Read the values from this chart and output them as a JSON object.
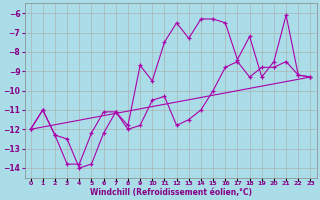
{
  "xlabel": "Windchill (Refroidissement éolien,°C)",
  "ylabel": "",
  "background_color": "#aadde8",
  "grid_color": "#aaaaaa",
  "line_color": "#aa00aa",
  "xlim": [
    -0.5,
    23.5
  ],
  "ylim": [
    -14.5,
    -5.5
  ],
  "yticks": [
    -14,
    -13,
    -12,
    -11,
    -10,
    -9,
    -8,
    -7,
    -6
  ],
  "xtick_labels": [
    "0",
    "1",
    "2",
    "3",
    "4",
    "5",
    "6",
    "7",
    "8",
    "9",
    "10",
    "11",
    "12",
    "13",
    "14",
    "15",
    "16",
    "17",
    "18",
    "19",
    "20",
    "21",
    "22",
    "23"
  ],
  "series": [
    {
      "x": [
        0,
        1,
        2,
        3,
        4,
        5,
        6,
        7,
        8,
        9,
        10,
        11,
        12,
        13,
        14,
        15,
        16,
        17,
        18,
        19,
        20,
        21,
        22,
        23
      ],
      "y": [
        -12.0,
        -11.0,
        -12.3,
        -13.8,
        -13.8,
        -12.2,
        -11.1,
        -11.1,
        -11.8,
        -8.7,
        -9.5,
        -7.5,
        -6.5,
        -7.3,
        -6.3,
        -6.3,
        -6.5,
        -8.4,
        -7.2,
        -9.3,
        -8.5,
        -6.1,
        -9.2,
        -9.3
      ]
    },
    {
      "x": [
        0,
        1,
        2,
        3,
        4,
        5,
        6,
        7,
        8,
        9,
        10,
        11,
        12,
        13,
        14,
        15,
        16,
        17,
        18,
        19,
        20,
        21,
        22,
        23
      ],
      "y": [
        -12.0,
        -11.0,
        -12.3,
        -12.5,
        -14.0,
        -13.8,
        -12.2,
        -11.1,
        -12.0,
        -11.8,
        -10.5,
        -10.3,
        -11.8,
        -11.5,
        -11.0,
        -10.0,
        -8.8,
        -8.5,
        -9.3,
        -8.8,
        -8.8,
        -8.5,
        -9.2,
        -9.3
      ]
    },
    {
      "x": [
        0,
        23
      ],
      "y": [
        -12.0,
        -9.3
      ]
    }
  ]
}
